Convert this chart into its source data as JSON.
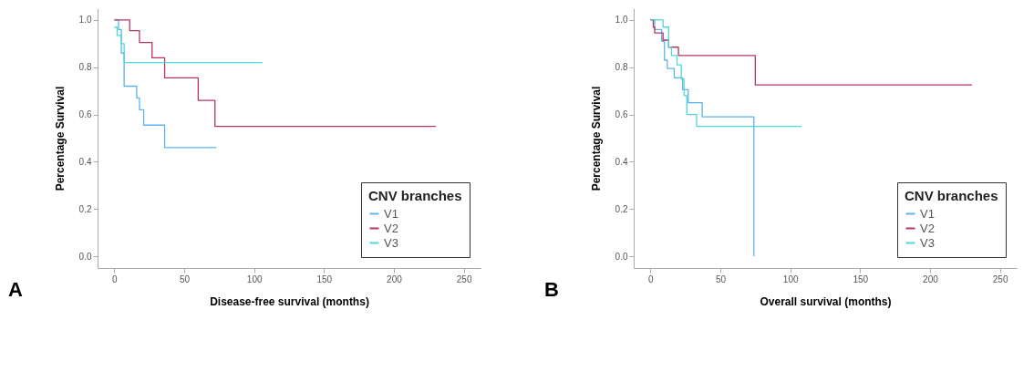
{
  "chart_data": [
    {
      "type": "step",
      "xlabel": "Disease-free survival (months)",
      "ylabel": "Percentage Survival",
      "legend_title": "CNV branches",
      "legend": "bottom right",
      "annotations": [
        "A"
      ],
      "xlim": [
        -12,
        262
      ],
      "xticks": [
        0,
        50,
        100,
        150,
        200,
        250
      ],
      "ylim": [
        -0.05,
        1.05
      ],
      "yticks": [
        {
          "value": 0,
          "label": "0.0"
        },
        {
          "value": 0.2,
          "label": "0.2"
        },
        {
          "value": 0.4,
          "label": "0.4"
        },
        {
          "value": 0.6,
          "label": "0.6"
        },
        {
          "value": 0.8,
          "label": "0.8"
        },
        {
          "value": 1,
          "label": "1.0"
        }
      ],
      "series": [
        {
          "name": "V1",
          "color": "#5bb4f0",
          "x": [
            0,
            3,
            5,
            7,
            16,
            18,
            21,
            36,
            73
          ],
          "values": [
            1.0,
            0.96,
            0.86,
            0.72,
            0.67,
            0.62,
            0.555,
            0.46,
            0.46
          ]
        },
        {
          "name": "V2",
          "color": "#b5375f",
          "x": [
            0,
            11,
            18,
            27,
            36,
            60,
            72,
            230
          ],
          "values": [
            1.0,
            0.955,
            0.905,
            0.84,
            0.755,
            0.66,
            0.55,
            0.55
          ]
        },
        {
          "name": "V3",
          "color": "#4fd8d8",
          "x": [
            0,
            2,
            5,
            7,
            106
          ],
          "values": [
            0.97,
            0.935,
            0.9,
            0.82,
            0.82
          ]
        }
      ]
    },
    {
      "type": "step",
      "xlabel": "Overall survival (months)",
      "ylabel": "Percentage Survival",
      "legend_title": "CNV branches",
      "legend": "bottom right",
      "annotations": [
        "B"
      ],
      "xlim": [
        -12,
        262
      ],
      "xticks": [
        0,
        50,
        100,
        150,
        200,
        250
      ],
      "ylim": [
        -0.05,
        1.05
      ],
      "yticks": [
        {
          "value": 0,
          "label": "0.0"
        },
        {
          "value": 0.2,
          "label": "0.2"
        },
        {
          "value": 0.4,
          "label": "0.4"
        },
        {
          "value": 0.6,
          "label": "0.6"
        },
        {
          "value": 0.8,
          "label": "0.8"
        },
        {
          "value": 1,
          "label": "1.0"
        }
      ],
      "series": [
        {
          "name": "V1",
          "color": "#5bb4f0",
          "x": [
            0,
            3,
            8,
            10,
            12,
            17,
            23,
            27,
            37,
            74,
            74
          ],
          "values": [
            1.0,
            0.96,
            0.91,
            0.83,
            0.795,
            0.755,
            0.705,
            0.65,
            0.59,
            0.59,
            0.0
          ]
        },
        {
          "name": "V2",
          "color": "#b5375f",
          "x": [
            0,
            2,
            3,
            9,
            13,
            20,
            75,
            230
          ],
          "values": [
            1.0,
            0.97,
            0.945,
            0.915,
            0.885,
            0.85,
            0.725,
            0.725
          ]
        },
        {
          "name": "V3",
          "color": "#4fd8d8",
          "x": [
            0,
            9,
            13,
            15,
            19,
            22,
            24,
            26,
            33,
            108
          ],
          "values": [
            1.0,
            0.97,
            0.885,
            0.85,
            0.81,
            0.75,
            0.68,
            0.6,
            0.55,
            0.55
          ]
        }
      ]
    }
  ]
}
